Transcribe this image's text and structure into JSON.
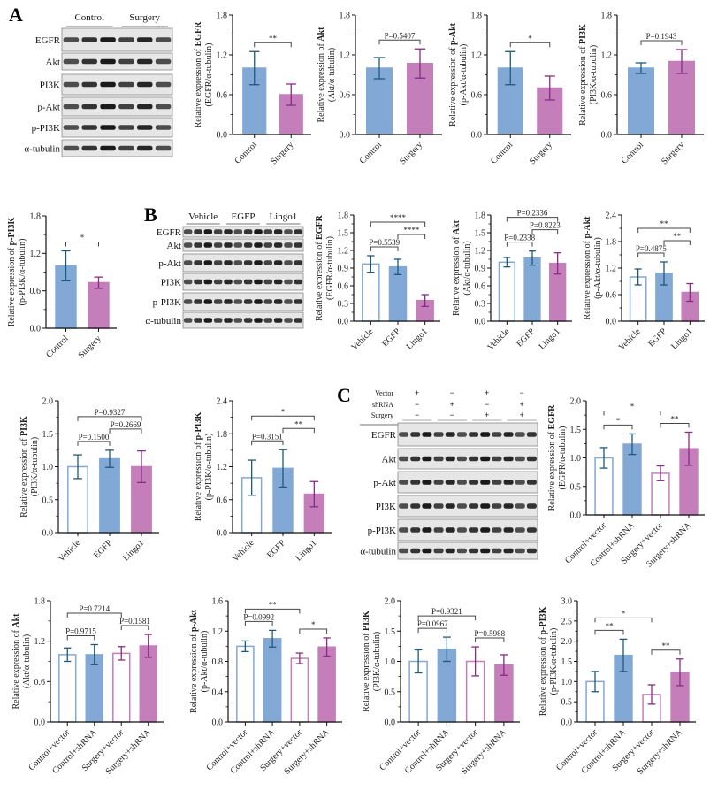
{
  "panels": {
    "a": "A",
    "b": "B",
    "c": "C"
  },
  "blots": [
    {
      "groups": [
        "Control",
        "Surgery"
      ],
      "rows": [
        "EGFR",
        "Akt",
        "PI3K",
        "p-Akt",
        "p-PI3K",
        "α-tubulin"
      ],
      "lanes": 6
    },
    {
      "groups": [
        "Vehicle",
        "EGFP",
        "Lingo1"
      ],
      "rows": [
        "EGFR",
        "Akt",
        "p-Akt",
        "PI3K",
        "p-PI3K",
        "α-tubulin"
      ],
      "lanes": 12
    },
    {
      "conditions": [
        {
          "name": "Vector",
          "signs": [
            "+",
            "−",
            "+",
            "−"
          ]
        },
        {
          "name": "shRNA",
          "signs": [
            "−",
            "+",
            "−",
            "+"
          ]
        },
        {
          "name": "Surgery",
          "signs": [
            "−",
            "−",
            "+",
            "+"
          ]
        }
      ],
      "rows": [
        "EGFR",
        "Akt",
        "p-Akt",
        "PI3K",
        "p-PI3K",
        "α-tubulin"
      ],
      "lanes": 12
    }
  ],
  "colors": {
    "blue_fill": "#82a8d6",
    "blue_dark": "#1d5a78",
    "pink_fill": "#c47fba",
    "pink_dark": "#8a2a85",
    "white": "#ffffff"
  },
  "chart_data": [
    {
      "type": "bar",
      "panel": "A",
      "ylabel_prefix": "Relative expression of ",
      "ylabel_target": "EGFR",
      "ylabel_sub": "(EGFR/α-tubulin)",
      "ylim": [
        0,
        1.8
      ],
      "yticks": [
        "0.0",
        "0.6",
        "1.2",
        "1.8"
      ],
      "categories": [
        "Control",
        "Surgery"
      ],
      "values": [
        1.0,
        0.6
      ],
      "errors": [
        0.25,
        0.16
      ],
      "styles": [
        "blue",
        "pink"
      ],
      "comparisons": [
        {
          "from": 0,
          "to": 1,
          "label": "**"
        }
      ]
    },
    {
      "type": "bar",
      "panel": "A",
      "ylabel_prefix": "Relative expression of ",
      "ylabel_target": "Akt",
      "ylabel_sub": "(Akt/α-tubulin)",
      "ylim": [
        0,
        1.8
      ],
      "yticks": [
        "0.0",
        "0.6",
        "1.2",
        "1.8"
      ],
      "categories": [
        "Control",
        "Surgery"
      ],
      "values": [
        1.0,
        1.07
      ],
      "errors": [
        0.16,
        0.22
      ],
      "styles": [
        "blue",
        "pink"
      ],
      "comparisons": [
        {
          "from": 0,
          "to": 1,
          "label": "P=0.5407"
        }
      ]
    },
    {
      "type": "bar",
      "panel": "A",
      "ylabel_prefix": "Relative expression of ",
      "ylabel_target": "p-Akt",
      "ylabel_sub": "(p-Akt/α-tubulin)",
      "ylim": [
        0,
        1.8
      ],
      "yticks": [
        "0.0",
        "0.6",
        "1.2",
        "1.8"
      ],
      "categories": [
        "Control",
        "Surgery"
      ],
      "values": [
        1.0,
        0.7
      ],
      "errors": [
        0.25,
        0.18
      ],
      "styles": [
        "blue",
        "pink"
      ],
      "comparisons": [
        {
          "from": 0,
          "to": 1,
          "label": "*"
        }
      ]
    },
    {
      "type": "bar",
      "panel": "A",
      "ylabel_prefix": "Relative expression of ",
      "ylabel_target": "PI3K",
      "ylabel_sub": "(PI3K/α-tubulin)",
      "ylim": [
        0,
        1.8
      ],
      "yticks": [
        "0.0",
        "0.6",
        "1.2",
        "1.8"
      ],
      "categories": [
        "Control",
        "Surgery"
      ],
      "values": [
        1.0,
        1.1
      ],
      "errors": [
        0.08,
        0.18
      ],
      "styles": [
        "blue",
        "pink"
      ],
      "comparisons": [
        {
          "from": 0,
          "to": 1,
          "label": "P=0.1943"
        }
      ]
    },
    {
      "type": "bar",
      "panel": "A",
      "ylabel_prefix": "Relative expression of ",
      "ylabel_target": "p-PI3K",
      "ylabel_sub": "(p-PI3K/α-tubulin)",
      "ylim": [
        0,
        1.8
      ],
      "yticks": [
        "0.0",
        "0.6",
        "1.2",
        "1.8"
      ],
      "categories": [
        "Control",
        "Surgery"
      ],
      "values": [
        1.0,
        0.73
      ],
      "errors": [
        0.24,
        0.09
      ],
      "styles": [
        "blue",
        "pink"
      ],
      "comparisons": [
        {
          "from": 0,
          "to": 1,
          "label": "*"
        }
      ]
    },
    {
      "type": "bar",
      "panel": "B",
      "ylabel_prefix": "Relative expression of ",
      "ylabel_target": "EGFR",
      "ylabel_sub": "(EGFR/α-tubulin)",
      "ylim": [
        0,
        1.8
      ],
      "yticks": [
        "0.0",
        "0.3",
        "0.6",
        "0.9",
        "1.2",
        "1.5",
        "1.8"
      ],
      "categories": [
        "Vehicle",
        "EGFP",
        "Lingo1"
      ],
      "values": [
        0.97,
        0.92,
        0.35
      ],
      "errors": [
        0.14,
        0.13,
        0.1
      ],
      "styles": [
        "blue-open",
        "blue",
        "pink"
      ],
      "comparisons": [
        {
          "from": 0,
          "to": 1,
          "label": "P=0.5539"
        },
        {
          "from": 1,
          "to": 2,
          "label": "****"
        },
        {
          "from": 0,
          "to": 2,
          "label": "****"
        }
      ]
    },
    {
      "type": "bar",
      "panel": "B",
      "ylabel_prefix": "Relative expression of ",
      "ylabel_target": "Akt",
      "ylabel_sub": "(Akt/α-tubulin)",
      "ylim": [
        0,
        1.8
      ],
      "yticks": [
        "0.0",
        "0.3",
        "0.6",
        "0.9",
        "1.2",
        "1.5",
        "1.8"
      ],
      "categories": [
        "Vehicle",
        "EGFP",
        "Lingo1"
      ],
      "values": [
        1.0,
        1.07,
        0.98
      ],
      "errors": [
        0.08,
        0.12,
        0.18
      ],
      "styles": [
        "blue-open",
        "blue",
        "pink"
      ],
      "comparisons": [
        {
          "from": 0,
          "to": 1,
          "label": "P=0.2338"
        },
        {
          "from": 1,
          "to": 2,
          "label": "P=0.8223"
        },
        {
          "from": 0,
          "to": 2,
          "label": "P=0.2336"
        }
      ]
    },
    {
      "type": "bar",
      "panel": "B",
      "ylabel_prefix": "Relative expression of ",
      "ylabel_target": "p-Akt",
      "ylabel_sub": "(p-Akt/α-tubulin)",
      "ylim": [
        0,
        2.4
      ],
      "yticks": [
        "0.0",
        "0.6",
        "1.2",
        "1.8",
        "2.4"
      ],
      "categories": [
        "Vehicle",
        "EGFP",
        "Lingo1"
      ],
      "values": [
        1.0,
        1.08,
        0.65
      ],
      "errors": [
        0.18,
        0.26,
        0.2
      ],
      "styles": [
        "blue-open",
        "blue",
        "pink"
      ],
      "comparisons": [
        {
          "from": 0,
          "to": 1,
          "label": "P=0.4875"
        },
        {
          "from": 1,
          "to": 2,
          "label": "**"
        },
        {
          "from": 0,
          "to": 2,
          "label": "**"
        }
      ]
    },
    {
      "type": "bar",
      "panel": "B",
      "ylabel_prefix": "Relative expression of ",
      "ylabel_target": "PI3K",
      "ylabel_sub": "(PI3K/α-tubulin)",
      "ylim": [
        0,
        2.0
      ],
      "yticks": [
        "0.0",
        "0.5",
        "1.0",
        "1.5",
        "2.0"
      ],
      "categories": [
        "Vehicle",
        "EGFP",
        "Lingo1"
      ],
      "values": [
        1.0,
        1.12,
        1.0
      ],
      "errors": [
        0.18,
        0.13,
        0.24
      ],
      "styles": [
        "blue-open",
        "blue",
        "pink"
      ],
      "comparisons": [
        {
          "from": 0,
          "to": 1,
          "label": "P=0.1500"
        },
        {
          "from": 1,
          "to": 2,
          "label": "P=0.2669"
        },
        {
          "from": 0,
          "to": 2,
          "label": "P=0.9327"
        }
      ]
    },
    {
      "type": "bar",
      "panel": "B",
      "ylabel_prefix": "Relative expression of ",
      "ylabel_target": "p-PI3K",
      "ylabel_sub": "(p-PI3K/α-tubulin)",
      "ylim": [
        0,
        2.4
      ],
      "yticks": [
        "0.0",
        "0.6",
        "1.2",
        "1.8",
        "2.4"
      ],
      "categories": [
        "Vehicle",
        "EGFP",
        "Lingo1"
      ],
      "values": [
        1.0,
        1.17,
        0.7
      ],
      "errors": [
        0.32,
        0.34,
        0.23
      ],
      "styles": [
        "blue-open",
        "blue",
        "pink"
      ],
      "comparisons": [
        {
          "from": 0,
          "to": 1,
          "label": "P=0.3151"
        },
        {
          "from": 1,
          "to": 2,
          "label": "**"
        },
        {
          "from": 0,
          "to": 2,
          "label": "*"
        }
      ]
    },
    {
      "type": "bar",
      "panel": "C",
      "ylabel_prefix": "Relative expression of ",
      "ylabel_target": "EGFR",
      "ylabel_sub": "(EGFR/α-tubulin)",
      "ylim": [
        0,
        2.0
      ],
      "yticks": [
        "0.0",
        "0.5",
        "1.0",
        "1.5",
        "2.0"
      ],
      "categories": [
        "Control+vector",
        "Control+shRNA",
        "Surgery+vector",
        "Surgery+shRNA"
      ],
      "values": [
        1.0,
        1.24,
        0.73,
        1.16
      ],
      "errors": [
        0.18,
        0.18,
        0.13,
        0.29
      ],
      "styles": [
        "blue-open",
        "blue",
        "pink-open",
        "pink"
      ],
      "comparisons": [
        {
          "from": 0,
          "to": 1,
          "label": "*"
        },
        {
          "from": 2,
          "to": 3,
          "label": "**"
        },
        {
          "from": 0,
          "to": 2,
          "label": "*"
        }
      ]
    },
    {
      "type": "bar",
      "panel": "C",
      "ylabel_prefix": "Relative expression of ",
      "ylabel_target": "Akt",
      "ylabel_sub": "(Akt/α-tubulin)",
      "ylim": [
        0,
        1.8
      ],
      "yticks": [
        "0.0",
        "0.6",
        "1.2",
        "1.8"
      ],
      "categories": [
        "Control+vector",
        "Control+shRNA",
        "Surgery+vector",
        "Surgery+shRNA"
      ],
      "values": [
        1.0,
        1.0,
        1.02,
        1.13
      ],
      "errors": [
        0.1,
        0.15,
        0.1,
        0.17
      ],
      "styles": [
        "blue-open",
        "blue",
        "pink-open",
        "pink"
      ],
      "comparisons": [
        {
          "from": 0,
          "to": 1,
          "label": "P=0.9715"
        },
        {
          "from": 2,
          "to": 3,
          "label": "P=0.1581"
        },
        {
          "from": 0,
          "to": 2,
          "label": "P=0.7214"
        }
      ]
    },
    {
      "type": "bar",
      "panel": "C",
      "ylabel_prefix": "Relative expression of ",
      "ylabel_target": "p-Akt",
      "ylabel_sub": "(p-Akt/α-tubulin)",
      "ylim": [
        0,
        1.6
      ],
      "yticks": [
        "0.0",
        "0.4",
        "0.8",
        "1.2",
        "1.6"
      ],
      "categories": [
        "Control+vector",
        "Control+shRNA",
        "Surgery+vector",
        "Surgery+shRNA"
      ],
      "values": [
        1.0,
        1.1,
        0.84,
        0.99
      ],
      "errors": [
        0.07,
        0.11,
        0.07,
        0.12
      ],
      "styles": [
        "blue-open",
        "blue",
        "pink-open",
        "pink"
      ],
      "comparisons": [
        {
          "from": 0,
          "to": 1,
          "label": "P=0.0992"
        },
        {
          "from": 2,
          "to": 3,
          "label": "*"
        },
        {
          "from": 0,
          "to": 2,
          "label": "**"
        }
      ]
    },
    {
      "type": "bar",
      "panel": "C",
      "ylabel_prefix": "Relative expression of ",
      "ylabel_target": "PI3K",
      "ylabel_sub": "(PI3K/α-tubulin)",
      "ylim": [
        0,
        2.0
      ],
      "yticks": [
        "0.0",
        "0.5",
        "1.0",
        "1.5",
        "2.0"
      ],
      "categories": [
        "Control+vector",
        "Control+shRNA",
        "Surgery+vector",
        "Surgery+shRNA"
      ],
      "values": [
        1.0,
        1.2,
        1.0,
        0.94
      ],
      "errors": [
        0.19,
        0.2,
        0.24,
        0.17
      ],
      "styles": [
        "blue-open",
        "blue",
        "pink-open",
        "pink"
      ],
      "comparisons": [
        {
          "from": 0,
          "to": 1,
          "label": "P=0.0967"
        },
        {
          "from": 2,
          "to": 3,
          "label": "P=0.5988"
        },
        {
          "from": 0,
          "to": 2,
          "label": "P=0.9321"
        }
      ]
    },
    {
      "type": "bar",
      "panel": "C",
      "ylabel_prefix": "Relative expression of ",
      "ylabel_target": "p-PI3K",
      "ylabel_sub": "(p-PI3K/α-tubulin)",
      "ylim": [
        0,
        3.0
      ],
      "yticks": [
        "0.0",
        "0.5",
        "1.0",
        "1.5",
        "2.0",
        "2.5",
        "3.0"
      ],
      "categories": [
        "Control+vector",
        "Control+shRNA",
        "Surgery+vector",
        "Surgery+shRNA"
      ],
      "values": [
        1.0,
        1.65,
        0.68,
        1.23
      ],
      "errors": [
        0.25,
        0.4,
        0.24,
        0.33
      ],
      "styles": [
        "blue-open",
        "blue",
        "pink-open",
        "pink"
      ],
      "comparisons": [
        {
          "from": 0,
          "to": 1,
          "label": "**"
        },
        {
          "from": 2,
          "to": 3,
          "label": "**"
        },
        {
          "from": 0,
          "to": 2,
          "label": "*"
        }
      ]
    }
  ]
}
